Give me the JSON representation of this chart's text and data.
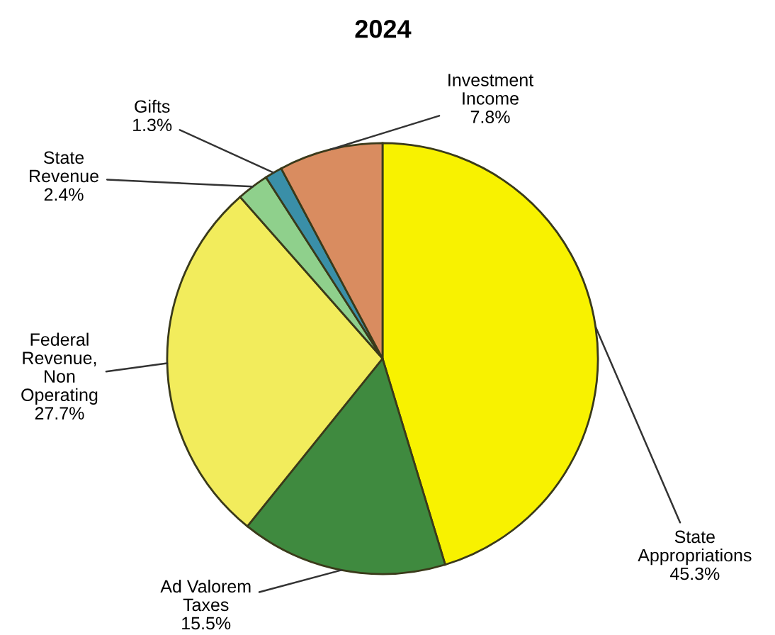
{
  "chart_data": {
    "type": "pie",
    "title": "2024",
    "categories": [
      "State\nAppropriations",
      "Ad Valorem\nTaxes",
      "Federal\nRevenue,\nNon\nOperating",
      "State\nRevenue",
      "Gifts",
      "Investment\nIncome"
    ],
    "values": [
      45.3,
      15.5,
      27.7,
      2.4,
      1.3,
      7.8
    ],
    "value_labels": [
      "45.3%",
      "15.5%",
      "27.7%",
      "2.4%",
      "1.3%",
      "7.8%"
    ],
    "colors": [
      "#f8f200",
      "#3f8a3f",
      "#f2ec5c",
      "#8fd08c",
      "#3a8fa8",
      "#d98c60"
    ],
    "legend": false
  }
}
